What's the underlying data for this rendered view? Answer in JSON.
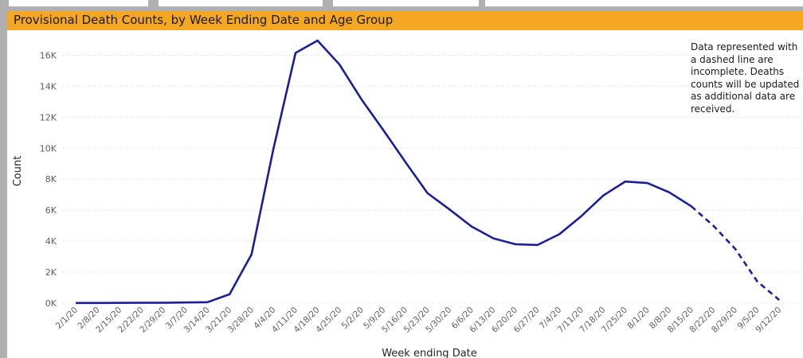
{
  "chart_data": {
    "type": "line",
    "title": "Provisional Death Counts, by Week Ending Date and Age Group",
    "xlabel": "Week ending Date",
    "ylabel": "Count",
    "ylim": [
      0,
      17000
    ],
    "y_ticks": [
      "0K",
      "2K",
      "4K",
      "6K",
      "8K",
      "10K",
      "12K",
      "14K",
      "16K"
    ],
    "grid": "horizontal dotted",
    "categories": [
      "2/1/20",
      "2/8/20",
      "2/15/20",
      "2/22/20",
      "2/29/20",
      "3/7/20",
      "3/14/20",
      "3/21/20",
      "3/28/20",
      "4/4/20",
      "4/11/20",
      "4/18/20",
      "4/25/20",
      "5/2/20",
      "5/9/20",
      "5/16/20",
      "5/23/20",
      "5/30/20",
      "6/6/20",
      "6/13/20",
      "6/20/20",
      "6/27/20",
      "7/4/20",
      "7/11/20",
      "7/18/20",
      "7/25/20",
      "8/1/20",
      "8/8/20",
      "8/15/20",
      "8/22/20",
      "8/29/20",
      "9/5/20",
      "9/12/20"
    ],
    "series": [
      {
        "color": "#1a1f96",
        "values": [
          10,
          10,
          15,
          20,
          25,
          40,
          60,
          570,
          3150,
          10000,
          16150,
          16950,
          15400,
          13150,
          11150,
          9100,
          7100,
          6050,
          4950,
          4180,
          3800,
          3750,
          4450,
          5620,
          6950,
          7850,
          7750,
          7150,
          6250,
          5000,
          3500,
          1400,
          200
        ],
        "incomplete_from": "8/15/20"
      }
    ],
    "annotation": "Data represented with a dashed line are incomplete. Deaths counts will be updated as additional data are received."
  },
  "header_tabs": [
    "",
    "",
    "",
    ""
  ]
}
